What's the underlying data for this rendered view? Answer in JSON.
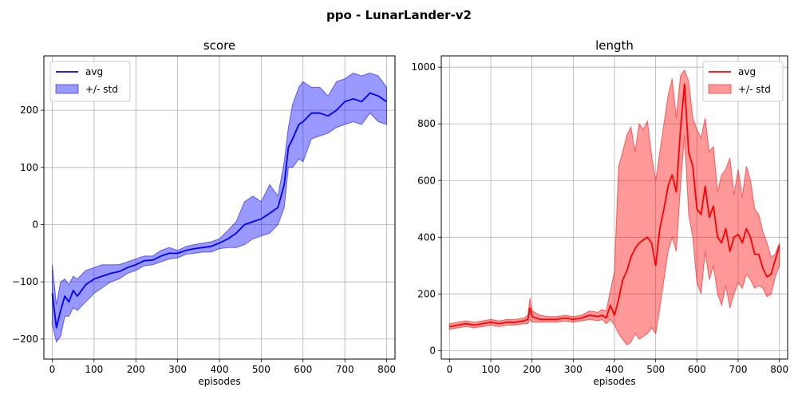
{
  "figure": {
    "title": "ppo - LunarLander-v2"
  },
  "chart_data": [
    {
      "type": "line",
      "title": "score",
      "xlabel": "episodes",
      "ylabel": "",
      "xlim": [
        -20,
        820
      ],
      "ylim": [
        -235,
        295
      ],
      "xticks": [
        0,
        100,
        200,
        300,
        400,
        500,
        600,
        700,
        800
      ],
      "yticks": [
        -200,
        -100,
        0,
        100,
        200
      ],
      "grid": true,
      "legend_position": "upper-left",
      "color": "#0000ff",
      "band_color": "#0000ff",
      "series": [
        {
          "name": "avg",
          "x": [
            0,
            10,
            20,
            30,
            40,
            50,
            60,
            80,
            100,
            120,
            140,
            160,
            180,
            200,
            220,
            240,
            260,
            280,
            300,
            320,
            340,
            360,
            380,
            400,
            420,
            440,
            460,
            480,
            500,
            520,
            540,
            555,
            565,
            575,
            590,
            600,
            620,
            640,
            660,
            680,
            700,
            720,
            740,
            760,
            780,
            800
          ],
          "y": [
            -120,
            -180,
            -150,
            -125,
            -135,
            -115,
            -125,
            -105,
            -95,
            -90,
            -85,
            -82,
            -75,
            -70,
            -63,
            -62,
            -55,
            -50,
            -50,
            -45,
            -42,
            -40,
            -38,
            -32,
            -25,
            -15,
            0,
            5,
            10,
            20,
            30,
            70,
            135,
            150,
            175,
            180,
            195,
            195,
            190,
            200,
            215,
            220,
            215,
            230,
            225,
            215
          ]
        },
        {
          "name": "+/- std",
          "x": [
            0,
            10,
            20,
            30,
            40,
            50,
            60,
            80,
            100,
            120,
            140,
            160,
            180,
            200,
            220,
            240,
            260,
            280,
            300,
            320,
            340,
            360,
            380,
            400,
            420,
            440,
            460,
            480,
            500,
            520,
            540,
            555,
            565,
            575,
            590,
            600,
            620,
            640,
            660,
            680,
            700,
            720,
            740,
            760,
            780,
            800
          ],
          "upper": [
            -70,
            -140,
            -100,
            -95,
            -105,
            -90,
            -95,
            -80,
            -75,
            -70,
            -70,
            -70,
            -65,
            -60,
            -55,
            -55,
            -45,
            -40,
            -45,
            -38,
            -35,
            -32,
            -30,
            -25,
            -10,
            5,
            40,
            50,
            40,
            70,
            50,
            110,
            170,
            210,
            240,
            250,
            240,
            240,
            225,
            250,
            255,
            265,
            260,
            265,
            260,
            240
          ],
          "lower": [
            -175,
            -205,
            -195,
            -160,
            -160,
            -145,
            -150,
            -135,
            -120,
            -110,
            -100,
            -95,
            -85,
            -80,
            -72,
            -70,
            -65,
            -60,
            -58,
            -52,
            -50,
            -48,
            -48,
            -42,
            -40,
            -40,
            -35,
            -25,
            -20,
            -15,
            0,
            30,
            100,
            100,
            115,
            110,
            150,
            155,
            160,
            170,
            175,
            180,
            175,
            195,
            180,
            175
          ]
        }
      ]
    },
    {
      "type": "line",
      "title": "length",
      "xlabel": "episodes",
      "ylabel": "",
      "xlim": [
        -20,
        820
      ],
      "ylim": [
        -30,
        1040
      ],
      "xticks": [
        0,
        100,
        200,
        300,
        400,
        500,
        600,
        700,
        800
      ],
      "yticks": [
        0,
        200,
        400,
        600,
        800,
        1000
      ],
      "grid": true,
      "legend_position": "upper-right",
      "color": "#ff0000",
      "band_color": "#ff0000",
      "series": [
        {
          "name": "avg",
          "x": [
            0,
            20,
            40,
            60,
            80,
            100,
            120,
            140,
            160,
            180,
            190,
            195,
            200,
            220,
            240,
            260,
            280,
            300,
            320,
            340,
            360,
            370,
            380,
            390,
            400,
            410,
            420,
            430,
            440,
            450,
            460,
            470,
            480,
            490,
            500,
            510,
            520,
            530,
            540,
            550,
            560,
            570,
            580,
            590,
            600,
            610,
            620,
            630,
            640,
            650,
            660,
            670,
            680,
            690,
            700,
            710,
            720,
            730,
            740,
            750,
            760,
            770,
            780,
            790,
            800
          ],
          "y": [
            85,
            90,
            95,
            90,
            95,
            100,
            95,
            100,
            100,
            105,
            110,
            150,
            120,
            110,
            110,
            110,
            115,
            110,
            115,
            125,
            120,
            125,
            115,
            160,
            125,
            180,
            250,
            280,
            330,
            360,
            380,
            390,
            400,
            380,
            300,
            430,
            500,
            580,
            620,
            560,
            780,
            940,
            700,
            650,
            500,
            480,
            580,
            470,
            510,
            400,
            380,
            430,
            350,
            400,
            410,
            380,
            430,
            400,
            340,
            340,
            290,
            260,
            270,
            320,
            370
          ]
        },
        {
          "name": "+/- std",
          "x": [
            0,
            20,
            40,
            60,
            80,
            100,
            120,
            140,
            160,
            180,
            190,
            195,
            200,
            220,
            240,
            260,
            280,
            300,
            320,
            340,
            360,
            370,
            380,
            390,
            400,
            410,
            420,
            430,
            440,
            450,
            460,
            470,
            480,
            490,
            500,
            510,
            520,
            530,
            540,
            550,
            560,
            570,
            580,
            590,
            600,
            610,
            620,
            630,
            640,
            650,
            660,
            670,
            680,
            690,
            700,
            710,
            720,
            730,
            740,
            750,
            760,
            770,
            780,
            790,
            800
          ],
          "upper": [
            95,
            100,
            105,
            100,
            105,
            110,
            105,
            110,
            110,
            115,
            125,
            185,
            140,
            125,
            120,
            120,
            125,
            120,
            125,
            140,
            135,
            145,
            140,
            210,
            280,
            650,
            700,
            760,
            790,
            700,
            800,
            780,
            810,
            690,
            600,
            700,
            800,
            900,
            960,
            820,
            970,
            990,
            950,
            820,
            780,
            750,
            820,
            700,
            720,
            560,
            620,
            640,
            680,
            550,
            640,
            540,
            650,
            600,
            500,
            480,
            420,
            380,
            330,
            340,
            380
          ],
          "lower": [
            75,
            80,
            85,
            80,
            85,
            90,
            85,
            90,
            90,
            95,
            95,
            110,
            100,
            100,
            100,
            100,
            105,
            100,
            105,
            110,
            105,
            110,
            95,
            110,
            90,
            60,
            40,
            20,
            30,
            60,
            40,
            50,
            60,
            80,
            60,
            150,
            250,
            350,
            400,
            350,
            580,
            760,
            480,
            400,
            240,
            200,
            350,
            250,
            300,
            200,
            160,
            230,
            150,
            200,
            240,
            220,
            270,
            250,
            220,
            230,
            220,
            190,
            200,
            260,
            300
          ]
        }
      ]
    }
  ]
}
